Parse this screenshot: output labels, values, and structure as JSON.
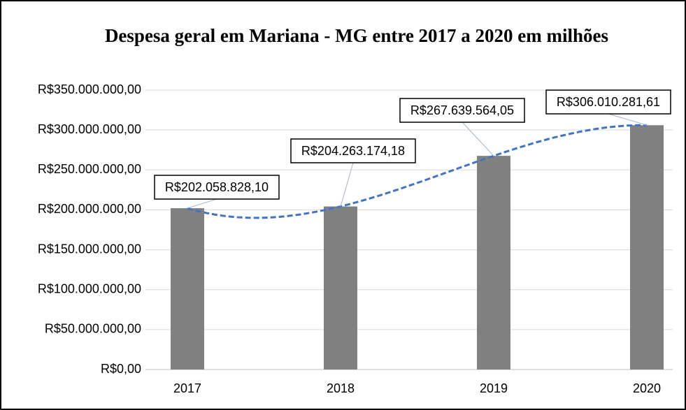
{
  "chart_data": {
    "type": "bar",
    "title": "Despesa geral em Mariana - MG entre 2017 a 2020 em milhões",
    "categories": [
      "2017",
      "2018",
      "2019",
      "2020"
    ],
    "values": [
      202058828.1,
      204263174.18,
      267639564.05,
      306010281.61
    ],
    "value_labels": [
      "R$202.058.828,10",
      "R$204.263.174,18",
      "R$267.639.564,05",
      "R$306.010.281,61"
    ],
    "color": "#808080",
    "ylim": [
      0,
      350000000
    ],
    "yticks": [
      {
        "value": 0,
        "label": "R$0,00"
      },
      {
        "value": 50000000,
        "label": "R$50.000.000,00"
      },
      {
        "value": 100000000,
        "label": "R$100.000.000,00"
      },
      {
        "value": 150000000,
        "label": "R$150.000.000,00"
      },
      {
        "value": 200000000,
        "label": "R$200.000.000,00"
      },
      {
        "value": 250000000,
        "label": "R$250.000.000,00"
      },
      {
        "value": 300000000,
        "label": "R$300.000.000,00"
      },
      {
        "value": 350000000,
        "label": "R$350.000.000,00"
      }
    ],
    "grid": true,
    "trendline": {
      "type": "polynomial",
      "color": "#4472c4"
    }
  }
}
